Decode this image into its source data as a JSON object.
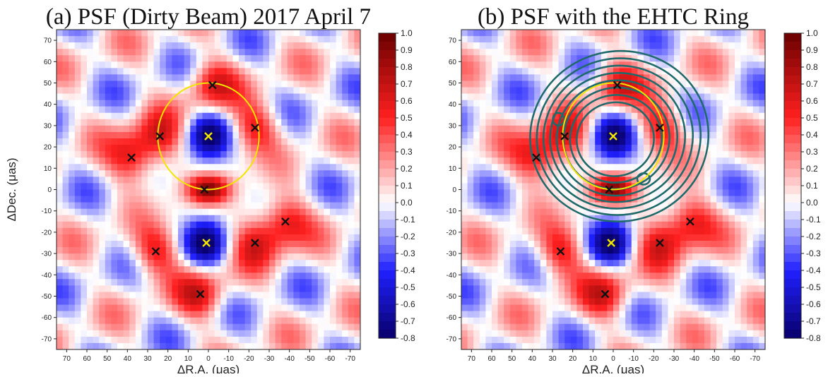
{
  "chart_data": [
    {
      "type": "heatmap",
      "title": "(a) PSF (Dirty Beam) 2017 April 7",
      "xlabel": "ΔR.A. (μas)",
      "ylabel": "ΔDec. (μas)",
      "xlim": [
        75,
        -75
      ],
      "ylim": [
        -75,
        75
      ],
      "x_ticks": [
        70,
        60,
        50,
        40,
        30,
        20,
        10,
        0,
        -10,
        -20,
        -30,
        -40,
        -50,
        -60,
        -70
      ],
      "y_ticks": [
        70,
        60,
        50,
        40,
        30,
        20,
        10,
        0,
        -10,
        -20,
        -30,
        -40,
        -50,
        -60,
        -70
      ],
      "colorbar": {
        "min": -0.8,
        "max": 1.0,
        "ticks": [
          1.0,
          0.9,
          0.8,
          0.7,
          0.6,
          0.5,
          0.4,
          0.3,
          0.2,
          0.1,
          0.0,
          -0.1,
          -0.2,
          -0.3,
          -0.4,
          -0.5,
          -0.6,
          -0.7,
          -0.8
        ],
        "colors": [
          "#08006b",
          "#2020ff",
          "#ffffff",
          "#ff2020",
          "#6b0000"
        ]
      },
      "circle": {
        "center": [
          0,
          25
        ],
        "radius": 25,
        "color": "#f2e600"
      },
      "black_markers": [
        [
          -2,
          49
        ],
        [
          -23,
          29
        ],
        [
          24,
          25
        ],
        [
          38,
          15
        ],
        [
          2,
          0
        ],
        [
          -38,
          -15
        ],
        [
          -23,
          -25
        ],
        [
          26,
          -29
        ],
        [
          4,
          -49
        ]
      ],
      "yellow_markers": [
        [
          0,
          25
        ],
        [
          1,
          -25
        ]
      ]
    },
    {
      "type": "heatmap",
      "title": "(b) PSF with the EHTC Ring",
      "xlabel": "ΔR.A. (μas)",
      "ylabel": "",
      "xlim": [
        75,
        -75
      ],
      "ylim": [
        -75,
        75
      ],
      "x_ticks": [
        70,
        60,
        50,
        40,
        30,
        20,
        10,
        0,
        -10,
        -20,
        -30,
        -40,
        -50,
        -60,
        -70
      ],
      "y_ticks": [
        70,
        60,
        50,
        40,
        30,
        20,
        10,
        0,
        -10,
        -20,
        -30,
        -40,
        -50,
        -60,
        -70
      ],
      "colorbar": {
        "min": -0.8,
        "max": 1.0,
        "ticks": [
          1.0,
          0.9,
          0.8,
          0.7,
          0.6,
          0.5,
          0.4,
          0.3,
          0.2,
          0.1,
          0.0,
          -0.1,
          -0.2,
          -0.3,
          -0.4,
          -0.5,
          -0.6,
          -0.7,
          -0.8
        ],
        "colors": [
          "#08006b",
          "#2020ff",
          "#ffffff",
          "#ff2020",
          "#6b0000"
        ]
      },
      "circle": {
        "center": [
          0,
          25
        ],
        "radius": 25,
        "color": "#f2e600"
      },
      "black_markers": [
        [
          -2,
          49
        ],
        [
          -23,
          29
        ],
        [
          24,
          25
        ],
        [
          38,
          15
        ],
        [
          2,
          0
        ],
        [
          -38,
          -15
        ],
        [
          -23,
          -25
        ],
        [
          26,
          -29
        ],
        [
          4,
          -49
        ]
      ],
      "yellow_markers": [
        [
          0,
          25
        ],
        [
          1,
          -25
        ]
      ],
      "ring_contours": {
        "color": "#1f6b6b",
        "center": [
          -3,
          25
        ],
        "levels": 8
      }
    }
  ]
}
